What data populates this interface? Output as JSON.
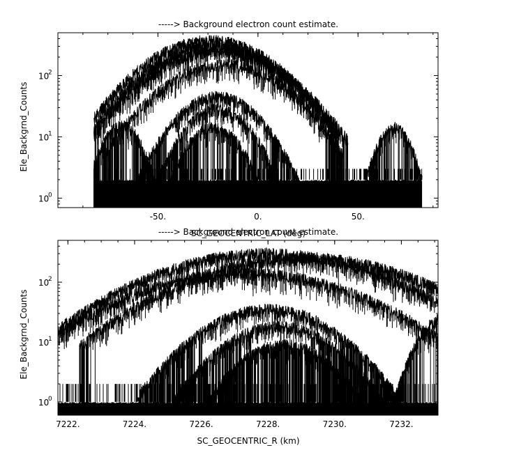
{
  "chart_data": [
    {
      "type": "line",
      "title": "-----> Background electron count estimate.",
      "xlabel": "SC_GEOCENTRIC_LAT (deg)",
      "ylabel": "Ele_Backgrnd_Counts",
      "xlim": [
        -100,
        90
      ],
      "ylim": [
        0.7,
        500
      ],
      "yscale": "log",
      "grid": false,
      "x_ticks": [
        {
          "value": -50,
          "label": "-50."
        },
        {
          "value": 0,
          "label": "0."
        },
        {
          "value": 50,
          "label": "50."
        }
      ],
      "y_ticks": [
        {
          "value": 1,
          "base": "10",
          "exp": "0"
        },
        {
          "value": 10,
          "base": "10",
          "exp": "1"
        },
        {
          "value": 100,
          "base": "10",
          "exp": "2"
        }
      ],
      "x_data_range": [
        -82,
        82
      ],
      "series": [
        {
          "center": -24,
          "width": 24,
          "peak": 370
        },
        {
          "center": -22,
          "width": 24,
          "peak": 300
        },
        {
          "center": -20,
          "width": 25,
          "peak": 250
        },
        {
          "center": -17,
          "width": 23,
          "peak": 150
        },
        {
          "center": -20,
          "width": 16,
          "peak": 45
        },
        {
          "center": -20,
          "width": 13,
          "peak": 28
        },
        {
          "center": -22,
          "width": 11,
          "peak": 14
        }
      ],
      "side_lobes": [
        {
          "center": -68,
          "width": 8,
          "peak": 15
        },
        {
          "center": 68,
          "width": 7,
          "peak": 14
        }
      ]
    },
    {
      "type": "line",
      "title": "-----> Background electron count estimate.",
      "xlabel": "SC_GEOCENTRIC_R (km)",
      "ylabel": "Ele_Backgrnd_Counts",
      "xlim": [
        7221.7,
        7233.1
      ],
      "ylim": [
        0.6,
        500
      ],
      "yscale": "log",
      "grid": false,
      "x_ticks": [
        {
          "value": 7222,
          "label": "7222."
        },
        {
          "value": 7224,
          "label": "7224."
        },
        {
          "value": 7226,
          "label": "7226."
        },
        {
          "value": 7228,
          "label": "7228."
        },
        {
          "value": 7230,
          "label": "7230."
        },
        {
          "value": 7232,
          "label": "7232."
        }
      ],
      "y_ticks": [
        {
          "value": 1,
          "base": "10",
          "exp": "0"
        },
        {
          "value": 10,
          "base": "10",
          "exp": "1"
        },
        {
          "value": 100,
          "base": "10",
          "exp": "2"
        }
      ],
      "series": [
        {
          "center": 7228.0,
          "width": 2.6,
          "peak": 300
        },
        {
          "center": 7229.1,
          "width": 2.6,
          "peak": 250
        },
        {
          "center": 7227.3,
          "width": 2.6,
          "peak": 140
        },
        {
          "center": 7228.0,
          "width": 1.5,
          "peak": 35
        },
        {
          "center": 7228.3,
          "width": 1.3,
          "peak": 18
        },
        {
          "center": 7228.5,
          "width": 1.1,
          "peak": 9
        }
      ],
      "side_lobes": [
        {
          "center": 7233.3,
          "width": 0.6,
          "peak": 25
        }
      ]
    }
  ]
}
